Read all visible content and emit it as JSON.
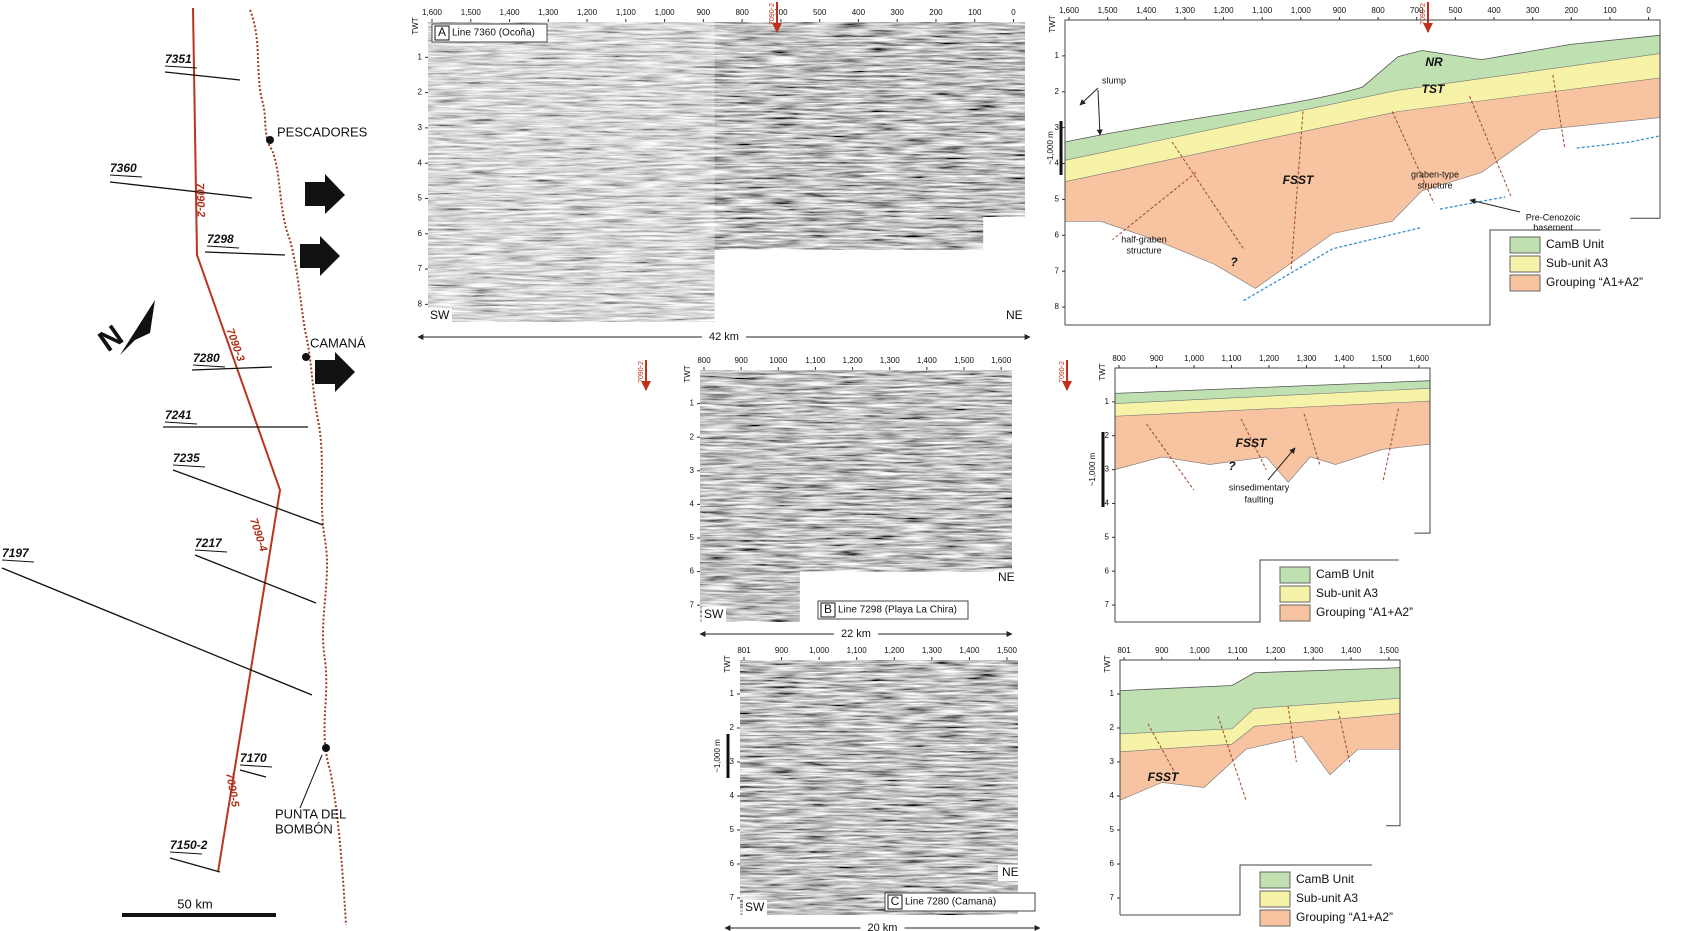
{
  "map": {
    "survey_lines": [
      "7351",
      "7360",
      "7298",
      "7280",
      "7241",
      "7235",
      "7217",
      "7197",
      "7170",
      "7150-2"
    ],
    "track_segments": [
      "7090-2",
      "7090-3",
      "7090-4",
      "7090-5"
    ],
    "towns": [
      "PESCADORES",
      "CAMANÁ",
      "PUNTA DEL",
      "BOMBÓN"
    ],
    "north": "N",
    "scale_bar": "50 km"
  },
  "panels": [
    {
      "letter": "A",
      "title": "Line 7360 (Ocoña)",
      "left_end": "SW",
      "right_end": "NE",
      "length": "42 km",
      "tie_line": "7090-2",
      "seismic": {
        "axis_title": "TWT",
        "x_ticks": [
          "1,600",
          "1,500",
          "1,400",
          "1,300",
          "1,200",
          "1,100",
          "1,000",
          "900",
          "800",
          "700",
          "500",
          "400",
          "300",
          "200",
          "100",
          "0"
        ],
        "y_ticks": [
          "1",
          "2",
          "3",
          "4",
          "5",
          "6",
          "7",
          "8"
        ]
      },
      "interpretation": {
        "axis_title": "TWT",
        "x_ticks": [
          "1,600",
          "1,500",
          "1,400",
          "1,300",
          "1,200",
          "1,100",
          "1,000",
          "900",
          "800",
          "700",
          "500",
          "400",
          "300",
          "200",
          "100",
          "0"
        ],
        "y_ticks": [
          "1",
          "2",
          "3",
          "4",
          "5",
          "6",
          "7",
          "8"
        ],
        "scale_bar": "~1,000 m",
        "labels": [
          "slump",
          "NR",
          "TST",
          "FSST",
          "graben-type",
          "structure",
          "Pre-Cenozoic",
          "basement",
          "half-graben",
          "structure",
          "?"
        ],
        "legend": [
          "CamB Unit",
          "Sub-unit A3",
          "Grouping “A1+A2”"
        ]
      }
    },
    {
      "letter": "B",
      "title": "Line 7298 (Playa La Chira)",
      "left_end": "SW",
      "right_end": "NE",
      "length": "22 km",
      "tie_line": "7090-2",
      "seismic": {
        "axis_title": "TWT",
        "x_ticks": [
          "800",
          "900",
          "1000",
          "1,100",
          "1,200",
          "1,300",
          "1,400",
          "1,500",
          "1,600"
        ],
        "y_ticks": [
          "1",
          "2",
          "3",
          "4",
          "5",
          "6",
          "7"
        ]
      },
      "interpretation": {
        "axis_title": "TWT",
        "x_ticks": [
          "800",
          "900",
          "1,000",
          "1,100",
          "1,200",
          "1,300",
          "1,400",
          "1,500",
          "1,600"
        ],
        "y_ticks": [
          "1",
          "2",
          "3",
          "4",
          "5",
          "6",
          "7"
        ],
        "scale_bar": "~1,000 m",
        "labels": [
          "FSST",
          "?",
          "sinsedimentary",
          "faulting"
        ],
        "legend": [
          "CamB Unit",
          "Sub-unit A3",
          "Grouping “A1+A2”"
        ]
      }
    },
    {
      "letter": "C",
      "title": "Line 7280 (Camaná)",
      "left_end": "SW",
      "right_end": "NE",
      "length": "20 km",
      "seismic": {
        "axis_title": "TWT",
        "x_ticks": [
          "801",
          "900",
          "1,000",
          "1,100",
          "1,200",
          "1,300",
          "1,400",
          "1,500"
        ],
        "y_ticks": [
          "1",
          "2",
          "3",
          "4",
          "5",
          "6",
          "7"
        ],
        "scale_bar": "~1,000 m"
      },
      "interpretation": {
        "axis_title": "TWT",
        "x_ticks": [
          "801",
          "900",
          "1,000",
          "1,100",
          "1,200",
          "1,300",
          "1,400",
          "1,500"
        ],
        "y_ticks": [
          "1",
          "2",
          "3",
          "4",
          "5",
          "6",
          "7"
        ],
        "labels": [
          "FSST"
        ],
        "legend": [
          "CamB Unit",
          "Sub-unit A3",
          "Grouping “A1+A2”"
        ]
      }
    }
  ]
}
